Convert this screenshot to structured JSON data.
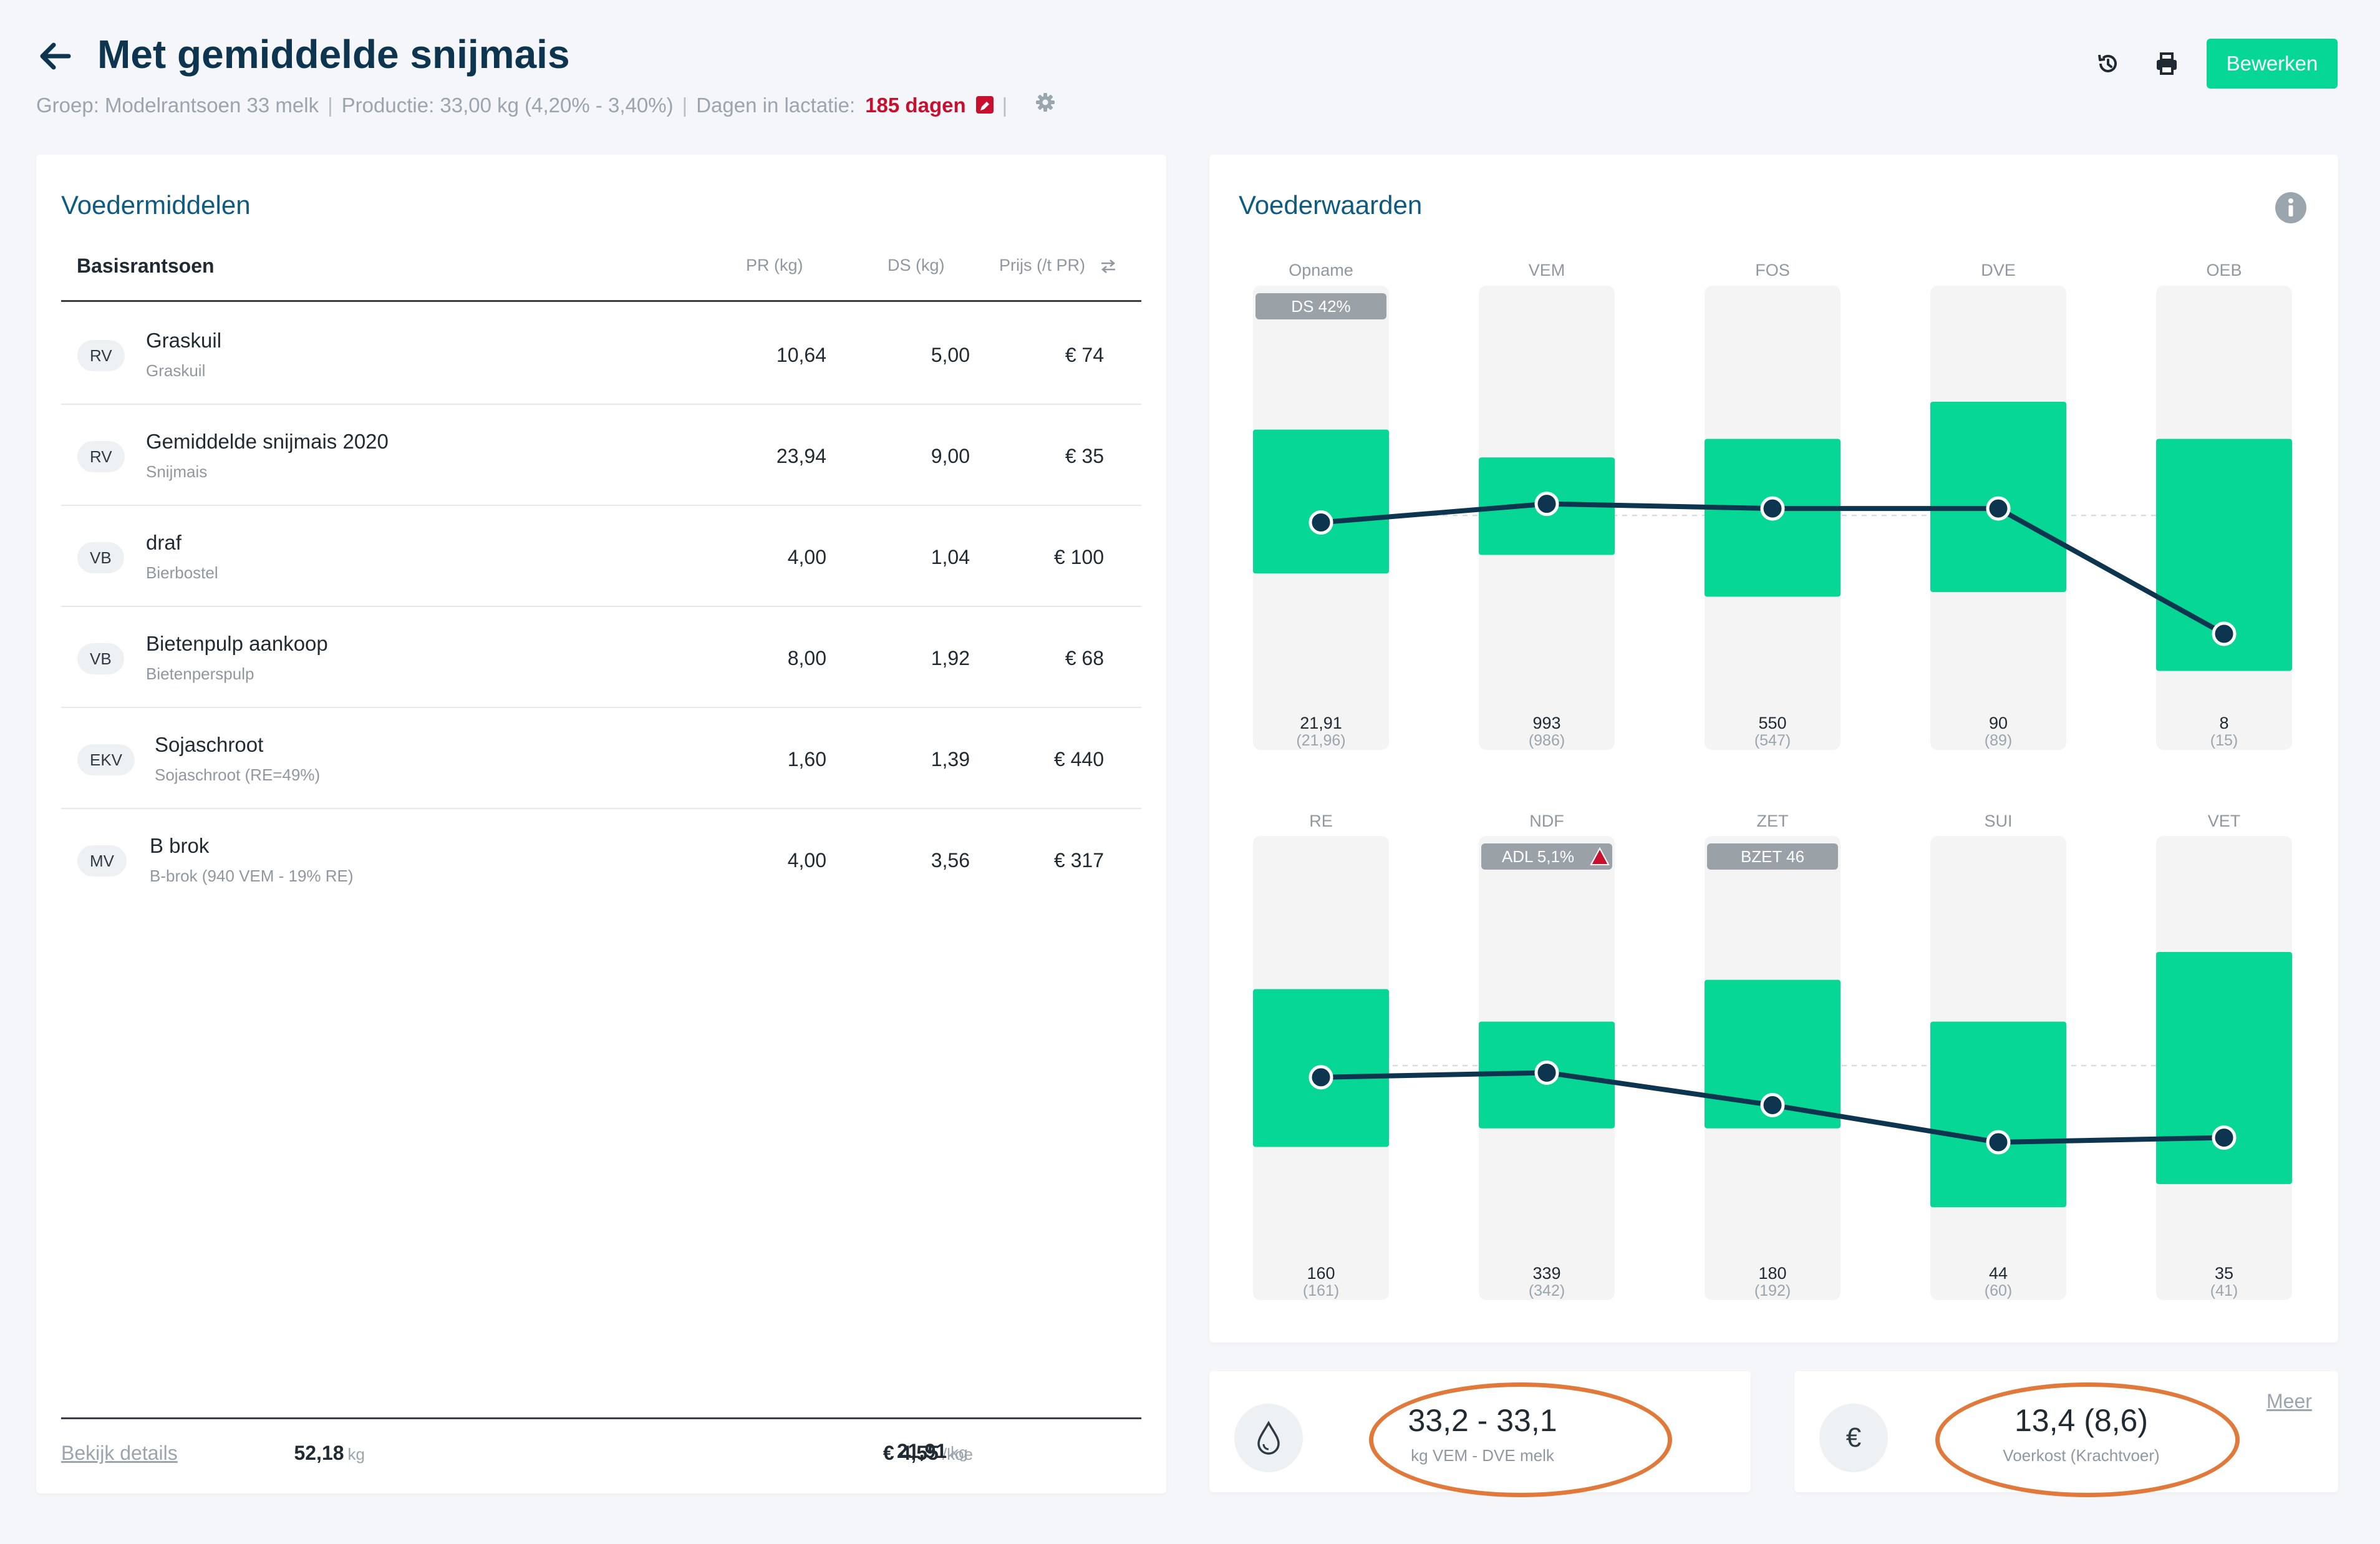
{
  "header": {
    "title": "Met gemiddelde snijmais",
    "group_label": "Groep: Modelrantsoen 33 melk",
    "production_label": "Productie: 33,00 kg (4,20% - 3,40%)",
    "lactation_label": "Dagen in lactatie:",
    "lactation_days": "185 dagen",
    "separator": "|",
    "edit_button": "Bewerken"
  },
  "feeds_card": {
    "title": "Voedermiddelen",
    "columns": {
      "name": "Basisrantsoen",
      "pr": "PR (kg)",
      "ds": "DS (kg)",
      "price": "Prijs (/t PR)"
    },
    "rows": [
      {
        "tag": "RV",
        "name": "Graskuil",
        "sub": "Graskuil",
        "pr": "10,64",
        "ds": "5,00",
        "price": "€ 74"
      },
      {
        "tag": "RV",
        "name": "Gemiddelde snijmais 2020",
        "sub": "Snijmais",
        "pr": "23,94",
        "ds": "9,00",
        "price": "€ 35"
      },
      {
        "tag": "VB",
        "name": "draf",
        "sub": "Bierbostel",
        "pr": "4,00",
        "ds": "1,04",
        "price": "€ 100"
      },
      {
        "tag": "VB",
        "name": "Bietenpulp aankoop",
        "sub": "Bietenperspulp",
        "pr": "8,00",
        "ds": "1,92",
        "price": "€ 68"
      },
      {
        "tag": "EKV",
        "name": "Sojaschroot",
        "sub": "Sojaschroot (RE=49%)",
        "pr": "1,60",
        "ds": "1,39",
        "price": "€ 440"
      },
      {
        "tag": "MV",
        "name": "B brok",
        "sub": "B-brok (940 VEM - 19% RE)",
        "pr": "4,00",
        "ds": "3,56",
        "price": "€ 317"
      }
    ],
    "footer": {
      "details_link": "Bekijk details",
      "total_pr": "52,18",
      "total_pr_unit": "kg",
      "total_ds": "21,91",
      "total_ds_unit": "kg",
      "total_price": "€ 4,55",
      "total_price_unit": "/koe"
    }
  },
  "values_card": {
    "title": "Voederwaarden"
  },
  "chart_data": {
    "type": "bar",
    "description_note": "Ranges shown as green bands; dots are actual values relative to target band",
    "rows": [
      {
        "categories": [
          "Opname",
          "VEM",
          "FOS",
          "DVE",
          "OEB"
        ],
        "badges": [
          "DS 42%",
          "",
          "",
          "",
          ""
        ],
        "badge_warning": [
          false,
          false,
          false,
          false,
          false
        ],
        "values": [
          "21,91",
          "993",
          "550",
          "90",
          "8"
        ],
        "norms": [
          "(21,96)",
          "(986)",
          "(547)",
          "(89)",
          "(15)"
        ],
        "band_top": [
          0.31,
          0.37,
          0.33,
          0.25,
          0.33
        ],
        "band_bottom": [
          0.62,
          0.58,
          0.67,
          0.66,
          0.83
        ],
        "dot_level": [
          0.51,
          0.47,
          0.48,
          0.48,
          0.75
        ]
      },
      {
        "categories": [
          "RE",
          "NDF",
          "ZET",
          "SUI",
          "VET"
        ],
        "badges": [
          "",
          "ADL 5,1%",
          "BZET 46",
          "",
          ""
        ],
        "badge_warning": [
          false,
          true,
          false,
          false,
          false
        ],
        "values": [
          "160",
          "339",
          "180",
          "44",
          "35"
        ],
        "norms": [
          "(161)",
          "(342)",
          "(192)",
          "(60)",
          "(41)"
        ],
        "band_top": [
          0.33,
          0.4,
          0.31,
          0.4,
          0.25
        ],
        "band_bottom": [
          0.67,
          0.63,
          0.63,
          0.8,
          0.75
        ],
        "dot_level": [
          0.52,
          0.51,
          0.58,
          0.66,
          0.65
        ]
      }
    ]
  },
  "stats": {
    "milk_value": "33,2 - 33,1",
    "milk_label": "kg VEM - DVE melk",
    "cost_value": "13,4 (8,6)",
    "cost_label": "Voerkost (Krachtvoer)",
    "euro_symbol": "€",
    "more_link": "Meer"
  },
  "colors": {
    "accent": "#06d794",
    "title_blue": "#0d5a82",
    "dark_navy": "#0d3550",
    "alert_red": "#c8102e",
    "highlight_orange": "#e0793a"
  }
}
